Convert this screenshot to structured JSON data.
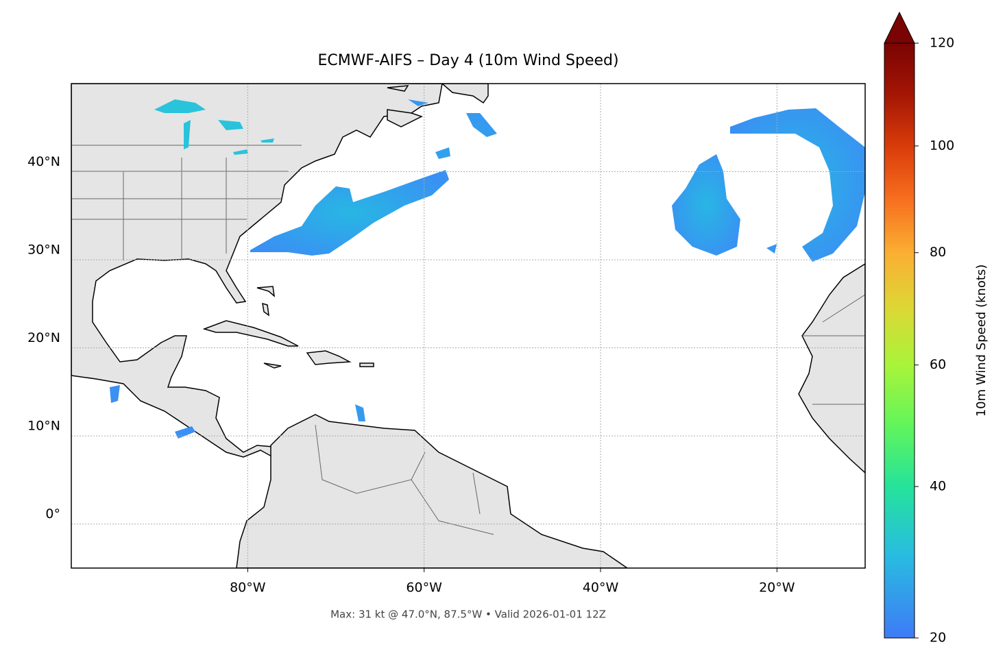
{
  "chart_data": {
    "type": "map",
    "title": "ECMWF-AIFS – Day 4 (10m Wind Speed)",
    "footer": "Max: 31 kt @ 47.0°N, 87.5°W • Valid 2026-01-01 12Z",
    "xlim": [
      -100,
      -10
    ],
    "ylim": [
      -5,
      50
    ],
    "xticks": [
      {
        "value": -80,
        "label": "80°W"
      },
      {
        "value": -60,
        "label": "60°W"
      },
      {
        "value": -40,
        "label": "40°W"
      },
      {
        "value": -20,
        "label": "20°W"
      }
    ],
    "yticks": [
      {
        "value": 0,
        "label": "0°"
      },
      {
        "value": 10,
        "label": "10°N"
      },
      {
        "value": 20,
        "label": "20°N"
      },
      {
        "value": 30,
        "label": "30°N"
      },
      {
        "value": 40,
        "label": "40°N"
      }
    ],
    "grid": true,
    "colorbar": {
      "label": "10m Wind Speed (knots)",
      "lim": [
        20,
        120
      ],
      "ticks": [
        20,
        40,
        60,
        80,
        100,
        120
      ],
      "norm": "power",
      "gamma": 0.85,
      "extend": "max",
      "colormap": [
        "#3e7bf7",
        "#28bde0",
        "#25e39a",
        "#63f55a",
        "#a9f43a",
        "#dcd735",
        "#fbae33",
        "#f76e1e",
        "#d83c0a",
        "#a41504",
        "#7a0403"
      ]
    }
  }
}
